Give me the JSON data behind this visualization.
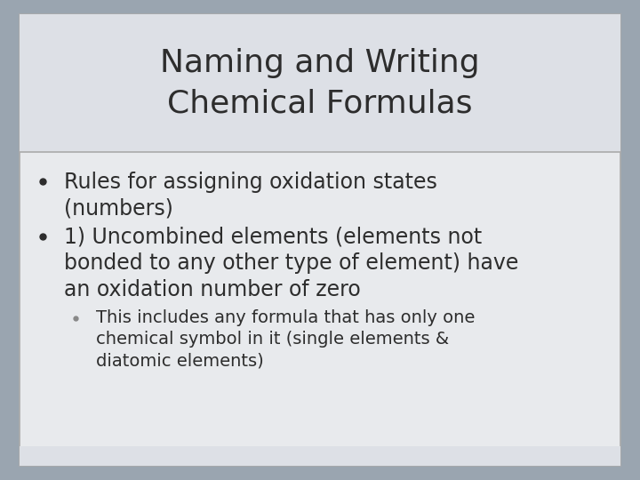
{
  "title_line1": "Naming and Writing",
  "title_line2": "Chemical Formulas",
  "title_fontsize": 26,
  "title_color": "#2d2d2d",
  "title_bg_color": "#dde0e6",
  "body_bg_color": "#e4e7eb",
  "outer_bg_color": "#9aa5b0",
  "border_color": "#aaaaaa",
  "bullet1_line1": "Rules for assigning oxidation states",
  "bullet1_line2": "(numbers)",
  "bullet2_line1": "1) Uncombined elements (elements not",
  "bullet2_line2": "bonded to any other type of element) have",
  "bullet2_line3": "an oxidation number of zero",
  "sub_line1": "This includes any formula that has only one",
  "sub_line2": "chemical symbol in it (single elements &",
  "sub_line3": "diatomic elements)",
  "bullet_color": "#2d2d2d",
  "body_fontsize": 17,
  "sub_fontsize": 14,
  "inner_bg_color": "#e8eaed",
  "bottom_bar_color": "#d0d4da"
}
